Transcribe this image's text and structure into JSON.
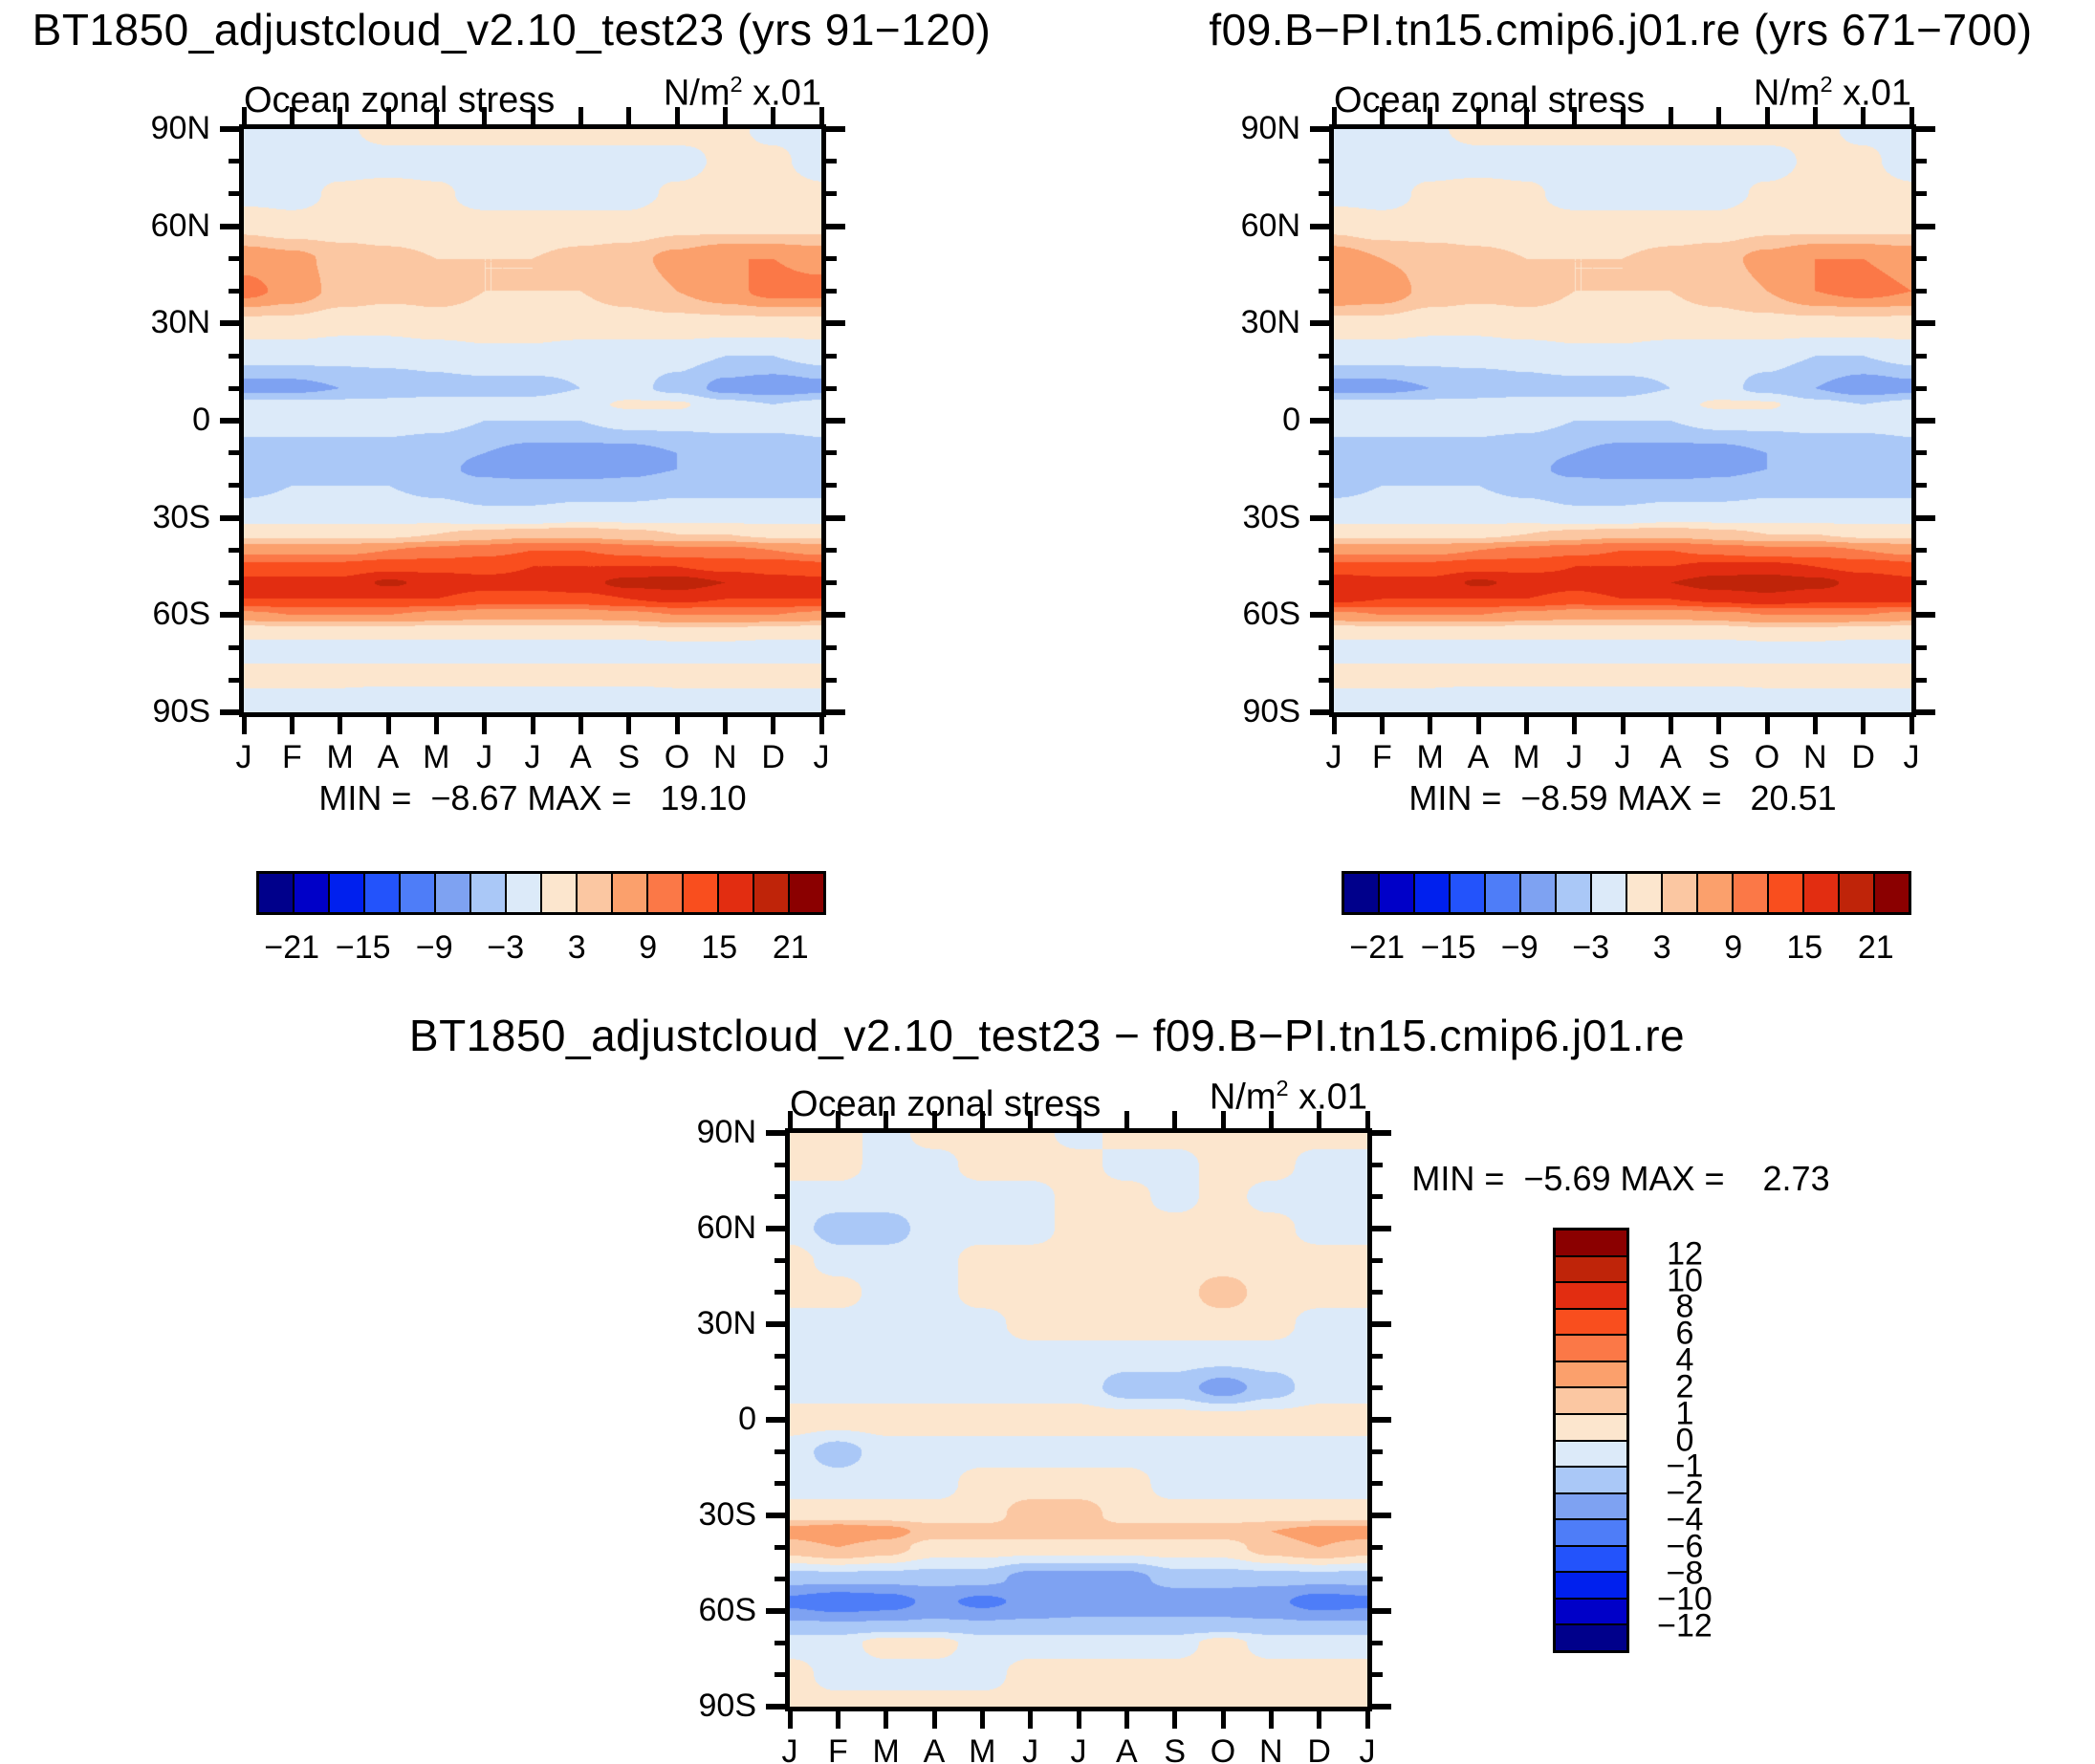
{
  "page": {
    "background": "#FFFFFF"
  },
  "panels": [
    {
      "id": "tl",
      "title": "BT1850_adjustcloud_v2.10_test23 (yrs 91−120)",
      "subtitle": "Ocean zonal stress",
      "units_base": "N/m",
      "units_exp": "2",
      "units_scale": " x.01",
      "minmax": "MIN =  −8.67 MAX =   19.10"
    },
    {
      "id": "tr",
      "title": "f09.B−PI.tn15.cmip6.j01.re (yrs 671−700)",
      "subtitle": "Ocean zonal stress",
      "units_base": "N/m",
      "units_exp": "2",
      "units_scale": " x.01",
      "minmax": "MIN =  −8.59 MAX =   20.51"
    },
    {
      "id": "bc",
      "title": "BT1850_adjustcloud_v2.10_test23 − f09.B−PI.tn15.cmip6.j01.re",
      "subtitle": "Ocean zonal stress",
      "units_base": "N/m",
      "units_exp": "2",
      "units_scale": " x.01",
      "minmax": "MIN =  −5.69 MAX =    2.73"
    }
  ],
  "axes": {
    "lat_labels": [
      "90N",
      "60N",
      "30N",
      "0",
      "30S",
      "60S",
      "90S"
    ],
    "month_labels": [
      "J",
      "F",
      "M",
      "A",
      "M",
      "J",
      "J",
      "A",
      "S",
      "O",
      "N",
      "D",
      "J"
    ]
  },
  "palette": {
    "colors16": [
      "#00008B",
      "#0000C8",
      "#0020EE",
      "#2353FB",
      "#4E7DF8",
      "#7EA2F2",
      "#AAC8F7",
      "#DCEAF9",
      "#FCE6CE",
      "#FBC7A2",
      "#FBA06C",
      "#FB7847",
      "#F94E1E",
      "#E22D11",
      "#BF2409",
      "#8B0000"
    ]
  },
  "colorbar_horizontal": {
    "tick_labels": [
      "−21",
      "−15",
      "−9",
      "−3",
      "3",
      "9",
      "15",
      "21"
    ],
    "tick_positions": [
      1,
      3,
      5,
      7,
      9,
      11,
      13,
      15
    ]
  },
  "colorbar_vertical": {
    "tick_labels": [
      "12",
      "10",
      "8",
      "6",
      "4",
      "2",
      "1",
      "0",
      "−1",
      "−2",
      "−4",
      "−6",
      "−8",
      "−10",
      "−12"
    ]
  },
  "chart_data": [
    {
      "type": "heatmap",
      "panel": "tl",
      "title": "BT1850_adjustcloud_v2.10_test23 (yrs 91-120)",
      "variable": "Ocean zonal stress",
      "units": "N/m2 x.01",
      "min": -8.67,
      "max": 19.1,
      "x_months": [
        "J",
        "F",
        "M",
        "A",
        "M",
        "J",
        "J",
        "A",
        "S",
        "O",
        "N",
        "D",
        "J"
      ],
      "levels": [
        -21,
        -18,
        -15,
        -12,
        -9,
        -6,
        -3,
        0,
        3,
        6,
        9,
        12,
        15,
        18,
        21
      ],
      "lats": [
        90,
        80,
        70,
        60,
        50,
        40,
        30,
        20,
        10,
        5,
        0,
        -10,
        -15,
        -20,
        -30,
        -35,
        -40,
        -45,
        -50,
        -55,
        -60,
        -65,
        -70,
        -80,
        -85,
        -90
      ],
      "values": [
        [
          -1,
          -1,
          -0.5,
          1,
          1,
          1,
          1,
          1,
          1,
          1,
          0.5,
          -0.5,
          -1
        ],
        [
          -1,
          -1,
          -1,
          -1,
          -1,
          -1,
          -1,
          -1,
          -1,
          -1,
          0.5,
          0.5,
          -1
        ],
        [
          -1,
          -1,
          0.5,
          1,
          0.5,
          -1,
          -1,
          -1,
          -1,
          0.5,
          1,
          1,
          0.5
        ],
        [
          2,
          1,
          1,
          1,
          1,
          1,
          1,
          1,
          1,
          2,
          2,
          2,
          2
        ],
        [
          8,
          7,
          5,
          4,
          3,
          3,
          3,
          4,
          5,
          7,
          9,
          9,
          8
        ],
        [
          10,
          8,
          5,
          4,
          4,
          3,
          3,
          3,
          4,
          6,
          8,
          10,
          10
        ],
        [
          2,
          2,
          1,
          1,
          2,
          2,
          2,
          2,
          2,
          2,
          2,
          2,
          2
        ],
        [
          -2,
          -2,
          -2,
          -2,
          -2,
          -1,
          -1,
          -2,
          -2,
          -2,
          -3,
          -3,
          -2
        ],
        [
          -7,
          -7,
          -6,
          -5,
          -4,
          -4,
          -4,
          -3,
          -2,
          -4,
          -7,
          -8,
          -7
        ],
        [
          -2,
          -2,
          -2,
          -2,
          -2,
          -2,
          -2,
          -1,
          0.5,
          0.5,
          -2,
          -3,
          -2
        ],
        [
          -2,
          -2,
          -2,
          -2,
          -2,
          -3,
          -3,
          -3,
          -2,
          -2,
          -2,
          -2,
          -2
        ],
        [
          -4,
          -4,
          -4,
          -4,
          -5,
          -6,
          -7,
          -7,
          -7,
          -6,
          -5,
          -5,
          -4
        ],
        [
          -5,
          -4,
          -4,
          -4,
          -5,
          -7,
          -8,
          -8,
          -7,
          -6,
          -5,
          -6,
          -6
        ],
        [
          -4,
          -3,
          -3,
          -3,
          -4,
          -5,
          -5,
          -5,
          -5,
          -4,
          -4,
          -4,
          -4
        ],
        [
          -1,
          -1,
          -1,
          -1,
          -1,
          -2,
          -2,
          -1,
          -1,
          -1,
          -1,
          -1,
          -1
        ],
        [
          2,
          2,
          2,
          2,
          3,
          4,
          5,
          5,
          4,
          3,
          3,
          2,
          2
        ],
        [
          8,
          8,
          8,
          9,
          10,
          11,
          12,
          12,
          11,
          10,
          10,
          9,
          8
        ],
        [
          13,
          13,
          13,
          14,
          14,
          14,
          15,
          15,
          15,
          15,
          14,
          14,
          13
        ],
        [
          16,
          16,
          16,
          18.5,
          17,
          16,
          16,
          17,
          19,
          19.5,
          18,
          16,
          16
        ],
        [
          15,
          15,
          15,
          15,
          15,
          14,
          14,
          14,
          15,
          16,
          15,
          15,
          15
        ],
        [
          8,
          9,
          9,
          9,
          8,
          7,
          7,
          7,
          8,
          9,
          9,
          9,
          8
        ],
        [
          1,
          1,
          1,
          1,
          1,
          1,
          1,
          1,
          1,
          2,
          2,
          1,
          1
        ],
        [
          -1,
          -1,
          -1,
          -1,
          -1,
          -1,
          -1,
          -1,
          -1,
          -1,
          -1,
          -1,
          -1
        ],
        [
          1,
          1,
          1,
          1,
          1,
          1,
          1,
          1,
          1,
          1,
          1,
          1,
          1
        ],
        [
          -1,
          -1,
          -1,
          -2,
          -2,
          -2,
          -2,
          -2,
          -2,
          -1,
          -1,
          -1,
          -1
        ],
        [
          -1,
          -1,
          -1,
          -1,
          -1,
          -1,
          -1,
          -1,
          -1,
          -1,
          -1,
          -1,
          -1
        ]
      ]
    },
    {
      "type": "heatmap",
      "panel": "tr",
      "title": "f09.B-PI.tn15.cmip6.j01.re (yrs 671-700)",
      "variable": "Ocean zonal stress",
      "units": "N/m2 x.01",
      "min": -8.59,
      "max": 20.51,
      "x_months": [
        "J",
        "F",
        "M",
        "A",
        "M",
        "J",
        "J",
        "A",
        "S",
        "O",
        "N",
        "D",
        "J"
      ],
      "levels": [
        -21,
        -18,
        -15,
        -12,
        -9,
        -6,
        -3,
        0,
        3,
        6,
        9,
        12,
        15,
        18,
        21
      ],
      "lats": [
        90,
        80,
        70,
        60,
        50,
        40,
        30,
        20,
        10,
        5,
        0,
        -10,
        -15,
        -20,
        -30,
        -35,
        -40,
        -45,
        -50,
        -55,
        -60,
        -65,
        -70,
        -80,
        -85,
        -90
      ],
      "values": [
        [
          -1,
          -1,
          -0.5,
          1,
          1,
          1,
          1,
          1,
          1,
          1,
          0.5,
          -0.5,
          -1
        ],
        [
          -1,
          -1,
          -1,
          -1,
          -1,
          -1,
          -1,
          -1,
          -1,
          -1,
          0.5,
          0.5,
          -1
        ],
        [
          -1,
          -1,
          0.5,
          1,
          0.5,
          -1,
          -1,
          -1,
          -1,
          0.5,
          1,
          1,
          0.5
        ],
        [
          2,
          1,
          1,
          1,
          1,
          1,
          1,
          1,
          1,
          2,
          2,
          2,
          2
        ],
        [
          8,
          6,
          5,
          4,
          3,
          3,
          3,
          4,
          5,
          7,
          9,
          9,
          8
        ],
        [
          9,
          8,
          5,
          4,
          4,
          3,
          3,
          3,
          4,
          6,
          9,
          10,
          9
        ],
        [
          2,
          2,
          1,
          1,
          2,
          2,
          2,
          2,
          2,
          2,
          2,
          2,
          2
        ],
        [
          -2,
          -2,
          -2,
          -2,
          -2,
          -1,
          -1,
          -2,
          -2,
          -2,
          -3,
          -3,
          -2
        ],
        [
          -7,
          -7,
          -6,
          -5,
          -4,
          -4,
          -4,
          -3,
          -2,
          -4,
          -6,
          -8,
          -7
        ],
        [
          -2,
          -2,
          -2,
          -2,
          -2,
          -2,
          -2,
          -1,
          0.5,
          0.5,
          -2,
          -3,
          -2
        ],
        [
          -2,
          -2,
          -2,
          -2,
          -2,
          -3,
          -3,
          -3,
          -2,
          -2,
          -2,
          -2,
          -2
        ],
        [
          -4,
          -4,
          -4,
          -4,
          -5,
          -6,
          -7,
          -7,
          -7,
          -6,
          -5,
          -5,
          -4
        ],
        [
          -5,
          -4,
          -4,
          -4,
          -5,
          -7,
          -8,
          -8,
          -7,
          -6,
          -5,
          -6,
          -6
        ],
        [
          -4,
          -3,
          -3,
          -3,
          -4,
          -5,
          -5,
          -5,
          -5,
          -4,
          -4,
          -4,
          -4
        ],
        [
          -1,
          -1,
          -1,
          -1,
          -1,
          -2,
          -2,
          -1,
          -1,
          -1,
          -1,
          -1,
          -1
        ],
        [
          2,
          2,
          2,
          2,
          3,
          4,
          5,
          5,
          4,
          3,
          3,
          2,
          2
        ],
        [
          8,
          8,
          8,
          9,
          10,
          11,
          12,
          12,
          11,
          10,
          10,
          9,
          8
        ],
        [
          13,
          13,
          13,
          14,
          14,
          15,
          15,
          15,
          16,
          16,
          15,
          14,
          13
        ],
        [
          17,
          16,
          16,
          18.5,
          17,
          16,
          17,
          18,
          19.5,
          20,
          19,
          17,
          16
        ],
        [
          16,
          15,
          15,
          15,
          15,
          14,
          15,
          15,
          16,
          17,
          16,
          16,
          16
        ],
        [
          8,
          9,
          9,
          9,
          8,
          7,
          7,
          7,
          8,
          9,
          9,
          9,
          8
        ],
        [
          1,
          1,
          1,
          1,
          1,
          1,
          1,
          1,
          1,
          2,
          2,
          1,
          1
        ],
        [
          -1,
          -1,
          -1,
          -1,
          -1,
          -1,
          -1,
          -1,
          -1,
          -1,
          -1,
          -1,
          -1
        ],
        [
          1,
          1,
          1,
          1,
          1,
          1,
          1,
          1,
          1,
          1,
          1,
          1,
          1
        ],
        [
          -1,
          -1,
          -1,
          -2,
          -2,
          -2,
          -2,
          -2,
          -2,
          -1,
          -1,
          -1,
          -1
        ],
        [
          -1,
          -1,
          -1,
          -1,
          -1,
          -1,
          -1,
          -1,
          -1,
          -1,
          -1,
          -1,
          -1
        ]
      ]
    },
    {
      "type": "heatmap",
      "panel": "bc",
      "title": "BT1850_adjustcloud_v2.10_test23 - f09.B-PI.tn15.cmip6.j01.re",
      "variable": "Ocean zonal stress",
      "units": "N/m2 x.01",
      "min": -5.69,
      "max": 2.73,
      "x_months": [
        "J",
        "F",
        "M",
        "A",
        "M",
        "J",
        "J",
        "A",
        "S",
        "O",
        "N",
        "D",
        "J"
      ],
      "levels": [
        -12,
        -10,
        -8,
        -6,
        -4,
        -2,
        -1,
        0,
        1,
        2,
        4,
        6,
        8,
        10,
        12
      ],
      "lats": [
        90,
        80,
        70,
        60,
        50,
        40,
        30,
        20,
        10,
        0,
        -10,
        -20,
        -30,
        -35,
        -40,
        -50,
        -57,
        -65,
        -70,
        -80,
        -90
      ],
      "values": [
        [
          0.5,
          0.5,
          -0.5,
          0.5,
          0.5,
          0.5,
          -0.5,
          0.5,
          0.5,
          0.5,
          0.5,
          0.5,
          0.5
        ],
        [
          0.5,
          0.5,
          -0.5,
          -0.5,
          0.5,
          0.5,
          0.5,
          -0.5,
          -0.5,
          0.5,
          0.5,
          -0.5,
          -0.5
        ],
        [
          -0.5,
          -0.5,
          -0.5,
          -0.5,
          -0.5,
          -0.5,
          0.5,
          0.5,
          -0.5,
          0.5,
          -0.5,
          -0.5,
          -0.5
        ],
        [
          -0.5,
          -1.5,
          -1.5,
          -0.5,
          -0.5,
          -0.5,
          0.5,
          0.5,
          0.5,
          0.5,
          0.5,
          -0.5,
          -0.5
        ],
        [
          0.5,
          -0.5,
          -0.5,
          -0.5,
          0.5,
          0.5,
          0.5,
          0.5,
          0.5,
          0.5,
          0.5,
          0.5,
          0.5
        ],
        [
          0.5,
          0.5,
          -0.5,
          -0.5,
          0.5,
          0.5,
          0.5,
          0.5,
          0.5,
          1.5,
          0.5,
          0.5,
          0.5
        ],
        [
          -0.5,
          -0.5,
          -0.5,
          -0.5,
          -0.5,
          0.5,
          0.5,
          0.5,
          0.5,
          0.5,
          0.5,
          -0.5,
          -0.5
        ],
        [
          -0.5,
          -0.5,
          -0.5,
          -0.5,
          -0.5,
          -0.5,
          -0.5,
          -0.5,
          -0.5,
          -0.5,
          -0.5,
          -0.5,
          -0.5
        ],
        [
          -0.5,
          -0.5,
          -0.5,
          -0.5,
          -0.5,
          -0.5,
          -0.5,
          -1.5,
          -1.5,
          -2.5,
          -1.5,
          -0.5,
          -0.5
        ],
        [
          0.5,
          0.5,
          0.5,
          0.5,
          0.5,
          0.5,
          0.5,
          0.5,
          0.5,
          0.5,
          0.5,
          0.5,
          0.5
        ],
        [
          -0.5,
          -1.5,
          -0.5,
          -0.5,
          -0.5,
          -0.5,
          -0.5,
          -0.5,
          -0.5,
          -0.5,
          -0.5,
          -0.5,
          -0.5
        ],
        [
          -0.5,
          -0.5,
          -0.5,
          -0.5,
          0.5,
          0.5,
          0.5,
          0.5,
          -0.5,
          -0.5,
          -0.5,
          -0.5,
          -0.5
        ],
        [
          0.5,
          0.5,
          0.5,
          0.5,
          0.5,
          1.5,
          1.5,
          0.5,
          0.5,
          0.5,
          0.5,
          0.5,
          0.5
        ],
        [
          2.5,
          3,
          2.5,
          1.5,
          1.5,
          1.5,
          1.5,
          1.5,
          1.5,
          1.5,
          2,
          2.5,
          2.5
        ],
        [
          1.5,
          2,
          1.5,
          0.5,
          0.5,
          0.5,
          0.5,
          0.5,
          0.5,
          0.5,
          1.5,
          2,
          1.5
        ],
        [
          -1.5,
          -1.5,
          -1.5,
          -1.5,
          -1.5,
          -2.5,
          -2.5,
          -2.5,
          -1.5,
          -1.5,
          -1.5,
          -1.5,
          -1.5
        ],
        [
          -4.5,
          -5.5,
          -5,
          -3.5,
          -4.5,
          -3.5,
          -3,
          -3,
          -3,
          -3,
          -3.5,
          -5,
          -4.5
        ],
        [
          -1.5,
          -1.5,
          -1.5,
          -1.5,
          -1.5,
          -1.5,
          -1.5,
          -1.5,
          -1.5,
          -1.5,
          -1.5,
          -1.5,
          -1.5
        ],
        [
          -0.5,
          -0.5,
          0.5,
          0.5,
          -0.5,
          -0.5,
          -0.5,
          -0.5,
          -0.5,
          0.5,
          -0.5,
          -0.5,
          -0.5
        ],
        [
          0.5,
          -0.5,
          -0.5,
          -0.5,
          -0.5,
          0.5,
          0.5,
          0.5,
          0.5,
          0.5,
          0.5,
          0.5,
          0.5
        ],
        [
          0.5,
          0.5,
          0.5,
          0.5,
          0.5,
          0.5,
          0.5,
          0.5,
          0.5,
          0.5,
          0.5,
          0.5,
          0.5
        ]
      ]
    }
  ]
}
